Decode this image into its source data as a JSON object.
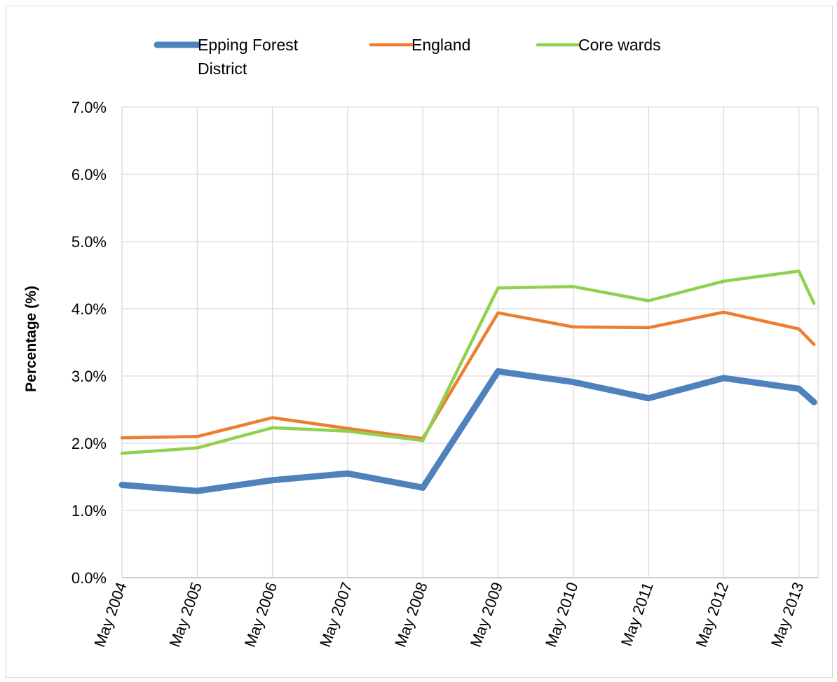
{
  "chart_data": {
    "type": "line",
    "title": "",
    "xlabel": "",
    "ylabel": "Percentage (%)",
    "categories": [
      "May 2004",
      "May 2005",
      "May 2006",
      "May 2007",
      "May 2008",
      "May 2009",
      "May 2010",
      "May 2011",
      "May 2012",
      "May 2013"
    ],
    "y_ticks": [
      "0.0%",
      "1.0%",
      "2.0%",
      "3.0%",
      "4.0%",
      "5.0%",
      "6.0%",
      "7.0%"
    ],
    "ylim": [
      0,
      7
    ],
    "x_range_end": 9.2,
    "grid": true,
    "legend_position": "top",
    "series": [
      {
        "name": "Epping Forest District",
        "legend_lines": [
          "Epping Forest",
          "District"
        ],
        "color": "#4f81bd",
        "style": "thick",
        "x": [
          0,
          1,
          2,
          3,
          4,
          5,
          6,
          7,
          8,
          9,
          9.2
        ],
        "values": [
          1.38,
          1.29,
          1.45,
          1.55,
          1.34,
          3.07,
          2.91,
          2.67,
          2.97,
          2.81,
          2.61
        ]
      },
      {
        "name": "England",
        "legend_lines": [
          "England"
        ],
        "color": "#ed7d31",
        "style": "thin",
        "x": [
          0,
          1,
          2,
          3,
          4,
          5,
          6,
          7,
          8,
          9,
          9.2
        ],
        "values": [
          2.08,
          2.1,
          2.38,
          2.22,
          2.07,
          3.94,
          3.73,
          3.72,
          3.95,
          3.7,
          3.47
        ]
      },
      {
        "name": "Core wards",
        "legend_lines": [
          "Core wards"
        ],
        "color": "#8fd14f",
        "style": "thin",
        "x": [
          0,
          1,
          2,
          3,
          4,
          5,
          6,
          7,
          8,
          9,
          9.2
        ],
        "values": [
          1.85,
          1.93,
          2.23,
          2.18,
          2.04,
          4.31,
          4.33,
          4.12,
          4.41,
          4.56,
          4.08
        ]
      }
    ]
  }
}
